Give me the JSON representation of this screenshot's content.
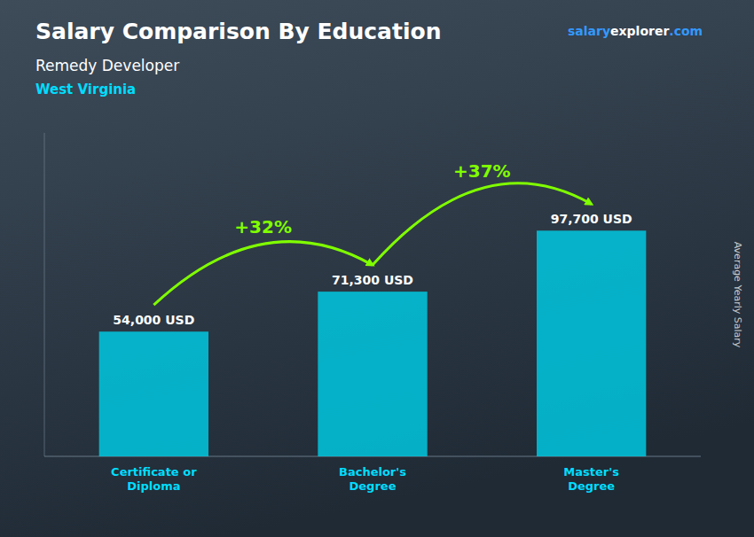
{
  "chart_data": {
    "type": "bar",
    "title": "Salary Comparison By Education",
    "subtitle": [
      "Remedy Developer",
      "West Virginia"
    ],
    "ylabel": "Average Yearly Salary",
    "source": [
      "salary",
      "explorer",
      ".com"
    ],
    "categories": [
      "Certificate or\nDiploma",
      "Bachelor's\nDegree",
      "Master's\nDegree"
    ],
    "values": [
      54000,
      71300,
      97700
    ],
    "value_labels": [
      "54,000 USD",
      "71,300 USD",
      "97,700 USD"
    ],
    "data_labels": true,
    "color": "#00c8e0",
    "annotations": [
      {
        "text": "+32%",
        "color": "#80ff00"
      },
      {
        "text": "+37%",
        "color": "#80ff00"
      }
    ],
    "ylim": [
      0,
      140000
    ],
    "tick_labels": "x",
    "grid": false
  }
}
